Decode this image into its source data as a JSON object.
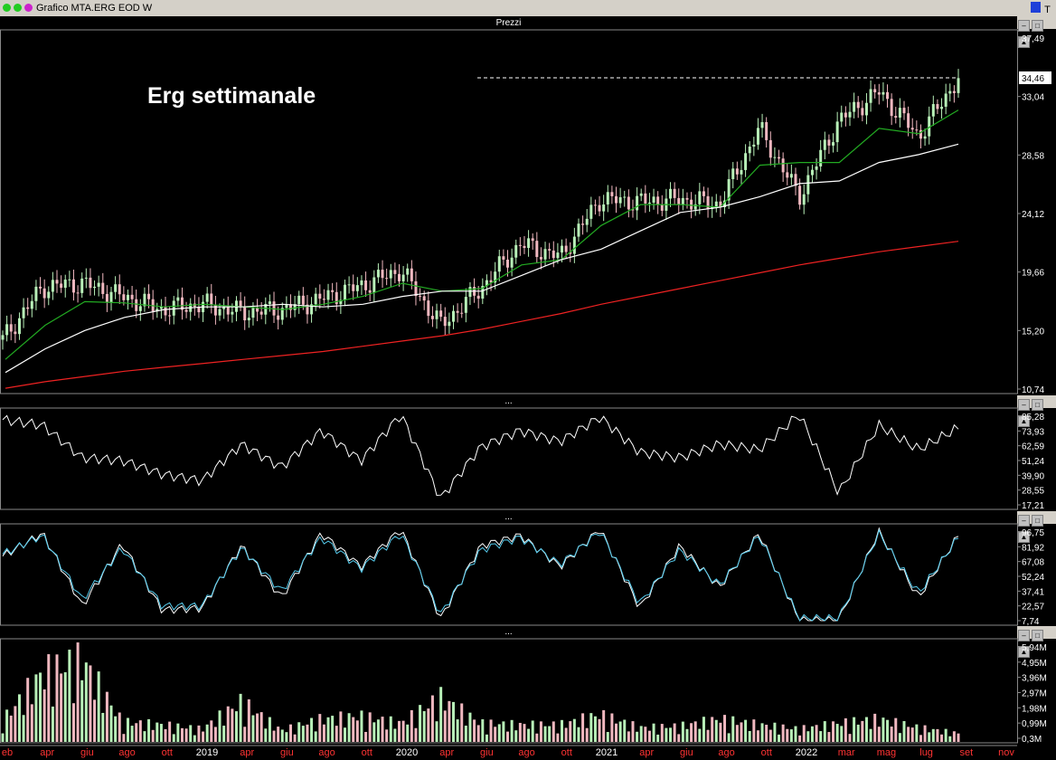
{
  "window": {
    "title": "Grafico MTA.ERG EOD W",
    "tool_icons": [
      "square-icon",
      "text-tool-icon"
    ],
    "tool_text": "T"
  },
  "price_panel": {
    "header": "Prezzi",
    "annotation": "Erg settimanale",
    "axis_labels": [
      "37,49",
      "33,04",
      "28,58",
      "24,12",
      "19,66",
      "15,20",
      "10,74"
    ],
    "last_price_label": "34,46"
  },
  "rsi_panel": {
    "header": "...",
    "axis_labels": [
      "85,28",
      "73,93",
      "62,59",
      "51,24",
      "39,90",
      "28,55",
      "17,21"
    ]
  },
  "stoch_panel": {
    "header": "...",
    "axis_labels": [
      "96,75",
      "81,92",
      "67,08",
      "52,24",
      "37,41",
      "22,57",
      "7,74"
    ]
  },
  "volume_panel": {
    "header": "...",
    "axis_labels": [
      "5,94M",
      "4,95M",
      "3,96M",
      "2,97M",
      "1,98M",
      "0,99M",
      "0,3M"
    ]
  },
  "x_axis": [
    {
      "label": "eb",
      "year": false
    },
    {
      "label": "apr",
      "year": false
    },
    {
      "label": "giu",
      "year": false
    },
    {
      "label": "ago",
      "year": false
    },
    {
      "label": "ott",
      "year": false
    },
    {
      "label": "2019",
      "year": true
    },
    {
      "label": "apr",
      "year": false
    },
    {
      "label": "giu",
      "year": false
    },
    {
      "label": "ago",
      "year": false
    },
    {
      "label": "ott",
      "year": false
    },
    {
      "label": "2020",
      "year": true
    },
    {
      "label": "apr",
      "year": false
    },
    {
      "label": "giu",
      "year": false
    },
    {
      "label": "ago",
      "year": false
    },
    {
      "label": "ott",
      "year": false
    },
    {
      "label": "2021",
      "year": true
    },
    {
      "label": "apr",
      "year": false
    },
    {
      "label": "giu",
      "year": false
    },
    {
      "label": "ago",
      "year": false
    },
    {
      "label": "ott",
      "year": false
    },
    {
      "label": "2022",
      "year": true
    },
    {
      "label": "mar",
      "year": false
    },
    {
      "label": "mag",
      "year": false
    },
    {
      "label": "lug",
      "year": false
    },
    {
      "label": "set",
      "year": false
    },
    {
      "label": "nov",
      "year": false
    }
  ],
  "colors": {
    "ma_short": "#22aa22",
    "ma_mid": "#ffffff",
    "ma_long": "#ee2222",
    "stoch_k": "#ffffff",
    "stoch_d": "#55ccee",
    "candle_up": "#b8f0b8",
    "candle_down": "#f0b8c0",
    "axis_year": "#ffffff",
    "axis_month": "#ff3333"
  },
  "chart_data": [
    {
      "type": "candlestick",
      "title": "",
      "ylim": [
        10.74,
        37.49
      ],
      "x": [
        "2018-02",
        "2018-04",
        "2018-06",
        "2018-08",
        "2018-10",
        "2019-01",
        "2019-04",
        "2019-06",
        "2019-08",
        "2019-10",
        "2020-01",
        "2020-04",
        "2020-06",
        "2020-08",
        "2020-10",
        "2021-01",
        "2021-04",
        "2021-06",
        "2021-08",
        "2021-10",
        "2022-01",
        "2022-03",
        "2022-05",
        "2022-07",
        "2022-08"
      ],
      "series": [
        {
          "values": [
            14.5,
            18.5,
            18.8,
            17.8,
            16.8,
            17.2,
            16.6,
            16.8,
            17.6,
            18.6,
            19.8,
            15.6,
            18.4,
            21.8,
            20.8,
            25.2,
            25.0,
            25.2,
            24.8,
            30.6,
            25.4,
            31.2,
            33.4,
            30.0,
            34.46
          ]
        },
        {
          "values": [
            13.0,
            15.6,
            17.4,
            17.3,
            17.0,
            17.2,
            17.0,
            16.8,
            17.2,
            17.8,
            18.8,
            18.2,
            18.4,
            20.2,
            20.6,
            23.2,
            24.8,
            24.8,
            24.6,
            27.8,
            28.0,
            28.0,
            30.6,
            30.2,
            32.0
          ]
        },
        {
          "values": [
            12.0,
            13.8,
            15.2,
            16.2,
            16.8,
            17.0,
            17.0,
            17.2,
            17.0,
            17.2,
            17.8,
            18.2,
            18.2,
            19.4,
            20.6,
            21.4,
            22.8,
            24.2,
            24.6,
            25.4,
            26.4,
            26.6,
            28.0,
            28.6,
            29.4
          ]
        },
        {
          "values": [
            10.8,
            11.3,
            11.7,
            12.1,
            12.4,
            12.7,
            13.0,
            13.3,
            13.6,
            14.0,
            14.4,
            14.8,
            15.3,
            15.9,
            16.5,
            17.2,
            17.8,
            18.4,
            19.0,
            19.6,
            20.2,
            20.7,
            21.2,
            21.6,
            22.0
          ]
        }
      ],
      "reference_level": 34.46
    },
    {
      "type": "line",
      "ylim": [
        17.21,
        85.28
      ],
      "series": [
        {
          "values": [
            80,
            76,
            52,
            50,
            40,
            35,
            62,
            45,
            72,
            50,
            84,
            22,
            60,
            72,
            64,
            82,
            56,
            52,
            62,
            58,
            84,
            26,
            76,
            58,
            74
          ]
        }
      ]
    },
    {
      "type": "line",
      "ylim": [
        7.74,
        96.75
      ],
      "series": [
        {
          "values": [
            70,
            92,
            22,
            82,
            18,
            20,
            80,
            30,
            92,
            60,
            96,
            10,
            80,
            90,
            60,
            96,
            20,
            80,
            40,
            92,
            8,
            8,
            94,
            30,
            90
          ]
        },
        {
          "values": [
            72,
            90,
            28,
            78,
            22,
            22,
            78,
            36,
            88,
            58,
            92,
            14,
            76,
            88,
            62,
            94,
            24,
            76,
            42,
            90,
            10,
            10,
            92,
            34,
            88
          ]
        }
      ]
    },
    {
      "type": "bar",
      "ylim": [
        0,
        5.94
      ],
      "values": [
        1.5,
        4.8,
        5.7,
        1.4,
        1.2,
        0.9,
        2.8,
        0.8,
        1.6,
        1.8,
        1.3,
        3.1,
        1.3,
        1.2,
        1.2,
        1.9,
        1.0,
        1.1,
        1.6,
        1.2,
        0.9,
        1.3,
        1.6,
        1.0,
        0.6
      ]
    }
  ]
}
